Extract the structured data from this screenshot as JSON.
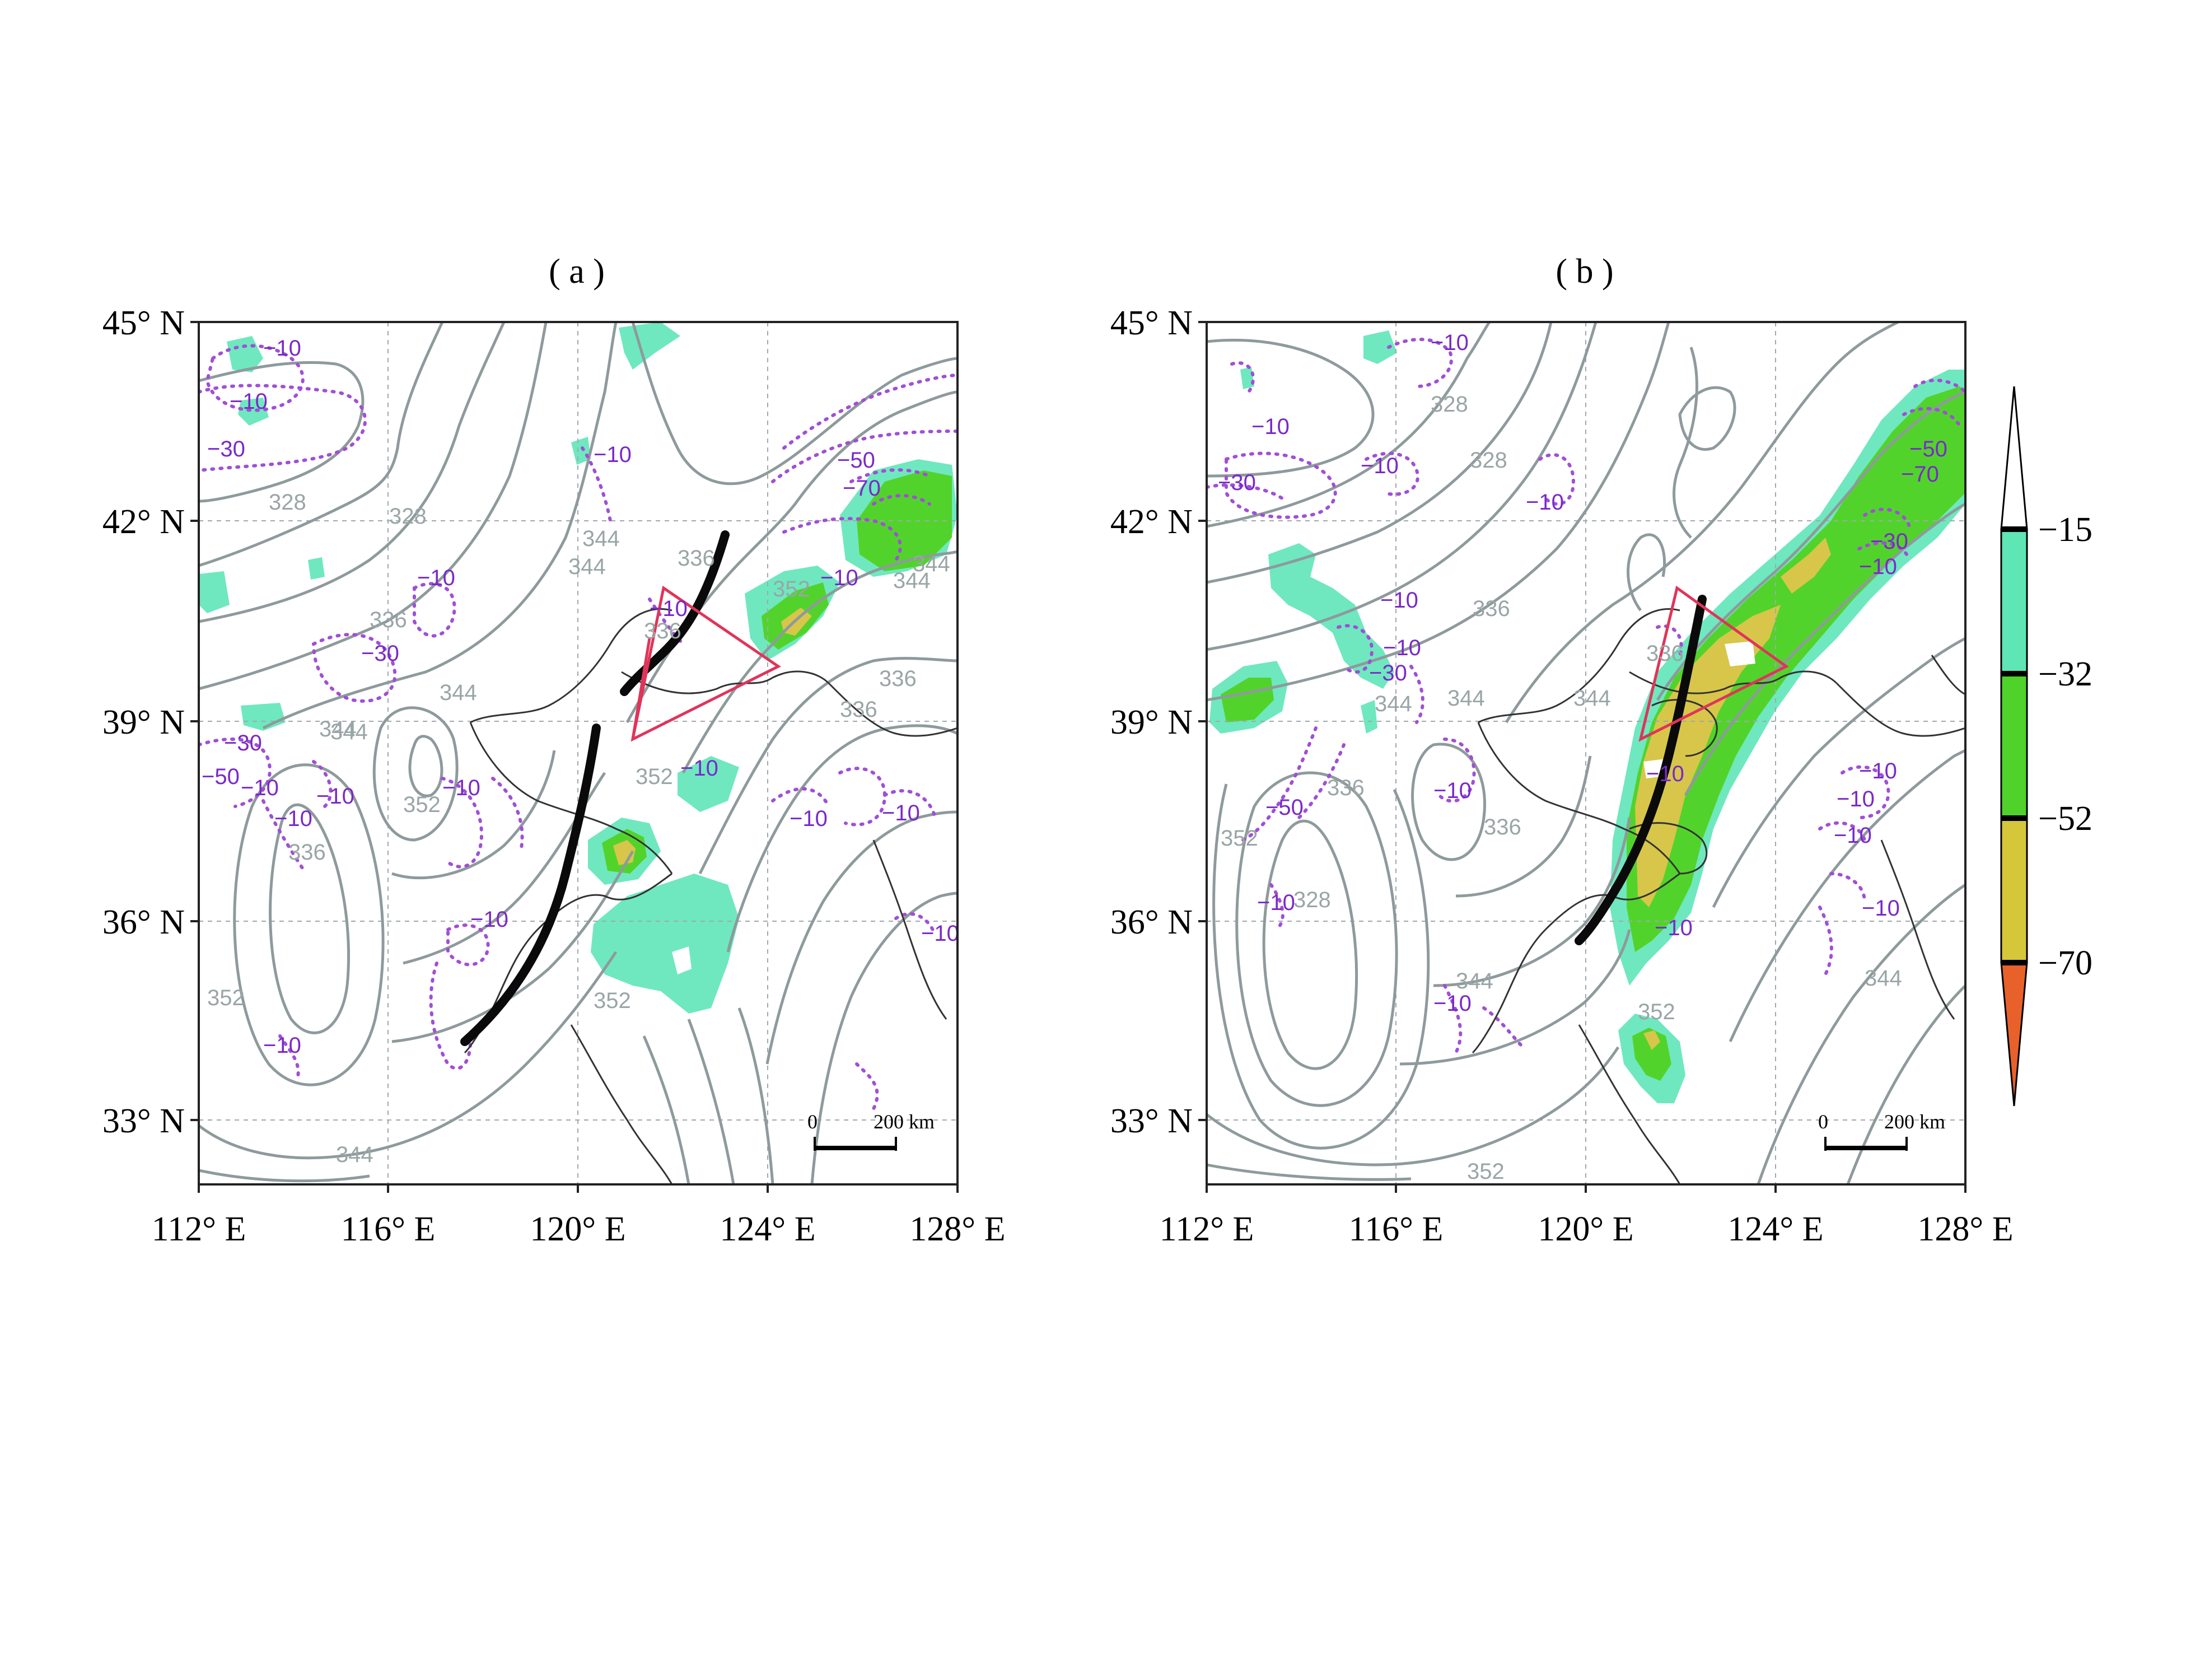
{
  "panels": [
    {
      "label": "( a )",
      "lat_labels": [
        "45° N",
        "42° N",
        "39° N",
        "36° N",
        "33° N"
      ],
      "lon_labels": [
        "112° E",
        "116° E",
        "120° E",
        "124° E",
        "128° E"
      ],
      "scale_bar": {
        "start": "0",
        "end": "200 km"
      },
      "contour_labels": [
        "328",
        "328",
        "344",
        "344",
        "336",
        "336",
        "344",
        "344",
        "336",
        "352",
        "336",
        "352",
        "352",
        "344",
        "336",
        "336",
        "352",
        "344",
        "352",
        "344",
        "344"
      ],
      "vorticity_labels": [
        "−10",
        "−10",
        "−30",
        "−10",
        "−50",
        "−70",
        "−10",
        "−10",
        "−30",
        "−10",
        "−30",
        "−50",
        "−10",
        "−10",
        "−10",
        "−10",
        "−10",
        "−10",
        "−10",
        "−10",
        "−10",
        "−10"
      ]
    },
    {
      "label": "( b )",
      "lat_labels": [
        "45° N",
        "42° N",
        "39° N",
        "36° N",
        "33° N"
      ],
      "lon_labels": [
        "112° E",
        "116° E",
        "120° E",
        "124° E",
        "128° E"
      ],
      "scale_bar": {
        "start": "0",
        "end": "200 km"
      },
      "contour_labels": [
        "328",
        "328",
        "336",
        "336",
        "344",
        "344",
        "336",
        "344",
        "336",
        "352",
        "328",
        "344",
        "352",
        "344",
        "352"
      ],
      "vorticity_labels": [
        "−10",
        "−10",
        "−30",
        "−10",
        "−10",
        "−50",
        "−70",
        "−30",
        "−10",
        "−10",
        "−10",
        "−30",
        "−10",
        "−50",
        "−10",
        "−10",
        "−10",
        "−10",
        "−10",
        "−10",
        "−10",
        "−10"
      ]
    }
  ],
  "colorbar": {
    "ticks": [
      "−15",
      "−32",
      "−52",
      "−70"
    ],
    "colors": [
      "#ffffff",
      "#5ee6b4",
      "#4fd22a",
      "#d6c63a",
      "#e8612a"
    ]
  },
  "colors": {
    "shade_light": "#6fe8bf",
    "shade_green": "#52d32c",
    "shade_yellow": "#d7c64a",
    "theta_contour": "#8e9a9c",
    "vorticity": "#a04fd6",
    "triangle": "#e0345a"
  }
}
